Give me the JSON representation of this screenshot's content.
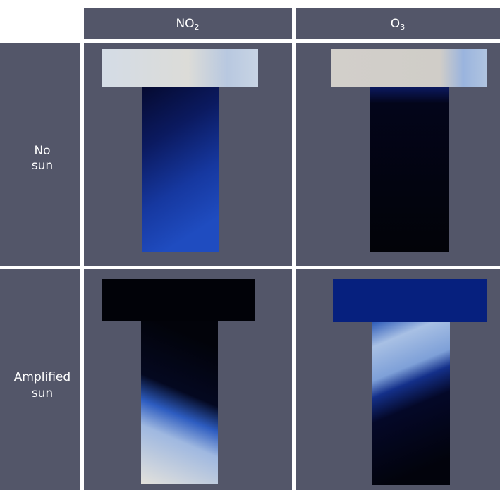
{
  "columns": [
    {
      "text": "NO",
      "subscript": "2"
    },
    {
      "text": "O",
      "subscript": "3"
    }
  ],
  "rows": [
    {
      "lines": [
        "No",
        "sun"
      ]
    },
    {
      "lines": [
        "Amplified",
        "sun"
      ]
    }
  ]
}
